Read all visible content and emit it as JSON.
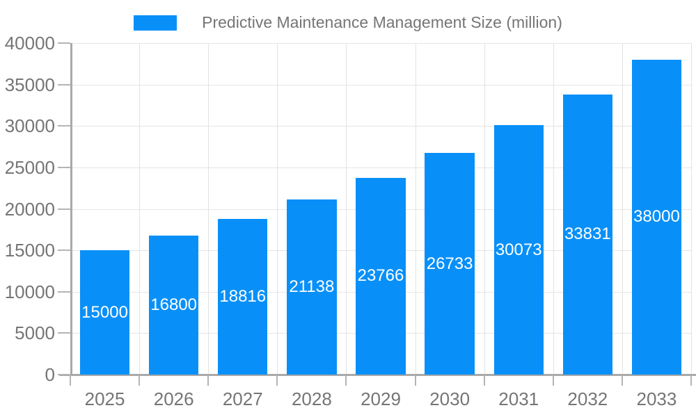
{
  "legend": {
    "label": "Predictive Maintenance Management Size (million)",
    "swatch_color": "#0990f8"
  },
  "chart_data": {
    "type": "bar",
    "title": "Predictive Maintenance Management Size (million)",
    "categories": [
      "2025",
      "2026",
      "2027",
      "2028",
      "2029",
      "2030",
      "2031",
      "2032",
      "2033"
    ],
    "series": [
      {
        "name": "Predictive Maintenance Management Size (million)",
        "color": "#0990f8",
        "values": [
          15000,
          16800,
          18816,
          21138,
          23766,
          26733,
          30073,
          33831,
          38000
        ]
      }
    ],
    "xlabel": "",
    "ylabel": "",
    "ylim": [
      0,
      40000
    ],
    "ytick_interval": 5000,
    "ytick_labels": [
      "0",
      "5000",
      "10000",
      "15000",
      "20000",
      "25000",
      "30000",
      "35000",
      "40000"
    ],
    "grid": true,
    "legend_position": "top-center",
    "bar_width_fraction": 0.72,
    "value_labels_shown": true,
    "colors": {
      "bar": "#0990f8",
      "value_label": "#ffffff",
      "axis_text": "#757575",
      "axis_line": "#a9a9a9",
      "tick": "#b4b4b4",
      "gridline": "#e5e5e5",
      "background": "#ffffff"
    }
  }
}
